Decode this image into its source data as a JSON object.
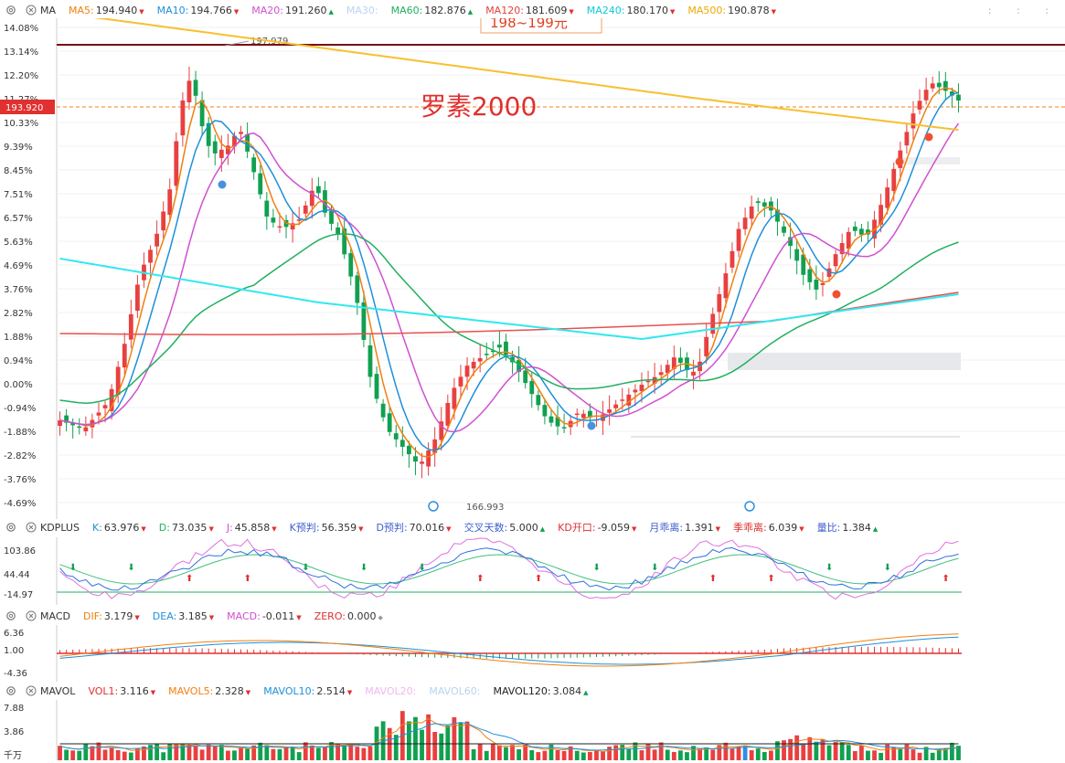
{
  "ma_bar": {
    "title": "MA",
    "items": [
      {
        "name": "MA5:",
        "value": "194.940",
        "dir": "dn",
        "color": "#f08010"
      },
      {
        "name": "MA10:",
        "value": "194.766",
        "dir": "dn",
        "color": "#1e90d8"
      },
      {
        "name": "MA20:",
        "value": "191.260",
        "dir": "up",
        "color": "#d050d0"
      },
      {
        "name": "MA30:",
        "value": "",
        "dir": "",
        "color": "#b8d4f0"
      },
      {
        "name": "MA60:",
        "value": "182.876",
        "dir": "up",
        "color": "#20b060"
      },
      {
        "name": "MA120:",
        "value": "181.609",
        "dir": "dn",
        "color": "#e04040"
      },
      {
        "name": "MA240:",
        "value": "180.170",
        "dir": "dn",
        "color": "#10c8d8"
      },
      {
        "name": "MA500:",
        "value": "190.878",
        "dir": "dn",
        "color": "#f0a800"
      }
    ]
  },
  "main_chart": {
    "y_labels": [
      "14.08%",
      "13.14%",
      "12.20%",
      "11.27%",
      "10.33%",
      "9.39%",
      "8.45%",
      "7.51%",
      "6.57%",
      "5.63%",
      "4.69%",
      "3.76%",
      "2.82%",
      "1.88%",
      "0.94%",
      "0.00%",
      "-0.94%",
      "-1.88%",
      "-2.82%",
      "-3.76%",
      "-4.69%"
    ],
    "current_price": "193.920",
    "high_label": "197.979",
    "low_label": "166.993",
    "annotation_top": "198~199元",
    "annotation_main": "罗素2000"
  },
  "kd_bar": {
    "title": "KDPLUS",
    "items": [
      {
        "name": "K:",
        "value": "63.976",
        "dir": "dn",
        "color": "#1e90d8"
      },
      {
        "name": "D:",
        "value": "73.035",
        "dir": "dn",
        "color": "#20b060"
      },
      {
        "name": "J:",
        "value": "45.858",
        "dir": "dn",
        "color": "#d050d0"
      },
      {
        "name": "K预判:",
        "value": "56.359",
        "dir": "dn",
        "color": "#4060d0"
      },
      {
        "name": "D预判:",
        "value": "70.016",
        "dir": "dn",
        "color": "#4060d0"
      },
      {
        "name": "交叉天数:",
        "value": "5.000",
        "dir": "up",
        "color": "#4060d0"
      },
      {
        "name": "KD开口:",
        "value": "-9.059",
        "dir": "dn",
        "color": "#e03030"
      },
      {
        "name": "月乖离:",
        "value": "1.391",
        "dir": "dn",
        "color": "#4060d0"
      },
      {
        "name": "季乖离:",
        "value": "6.039",
        "dir": "dn",
        "color": "#e03030"
      },
      {
        "name": "量比:",
        "value": "1.384",
        "dir": "up",
        "color": "#4060d0"
      }
    ],
    "y_labels": [
      "103.86",
      "44.44",
      "-14.97"
    ]
  },
  "macd_bar": {
    "title": "MACD",
    "items": [
      {
        "name": "DIF:",
        "value": "3.179",
        "dir": "dn",
        "color": "#f08010"
      },
      {
        "name": "DEA:",
        "value": "3.185",
        "dir": "dn",
        "color": "#1e90d8"
      },
      {
        "name": "MACD:",
        "value": "-0.011",
        "dir": "dn",
        "color": "#d050d0"
      },
      {
        "name": "ZERO:",
        "value": "0.000",
        "dir": "dot",
        "color": "#e03030"
      }
    ],
    "y_labels": [
      "6.36",
      "1.00",
      "-4.36"
    ]
  },
  "vol_bar": {
    "title": "MAVOL",
    "items": [
      {
        "name": "VOL1:",
        "value": "3.116",
        "dir": "dn",
        "color": "#e03030"
      },
      {
        "name": "MAVOL5:",
        "value": "2.328",
        "dir": "dn",
        "color": "#f08010"
      },
      {
        "name": "MAVOL10:",
        "value": "2.514",
        "dir": "dn",
        "color": "#1e90d8"
      },
      {
        "name": "MAVOL20:",
        "value": "",
        "dir": "",
        "color": "#f0b8f0"
      },
      {
        "name": "MAVOL60:",
        "value": "",
        "dir": "",
        "color": "#b8d4f0"
      },
      {
        "name": "MAVOL120:",
        "value": "3.084",
        "dir": "up",
        "color": "#222222"
      }
    ],
    "y_labels": [
      "7.88",
      "3.86",
      "千万"
    ]
  }
}
